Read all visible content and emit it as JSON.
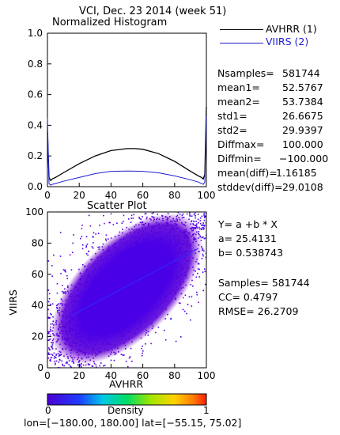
{
  "title": "VCI,  Dec. 23 2014 (week 51)",
  "colors": {
    "avhrr": "#000000",
    "viirs": "#1e1ed2",
    "fit": "#1e1eff",
    "axis": "#000000"
  },
  "histogram": {
    "title": "Normalized Histogram",
    "legend": [
      {
        "label": "AVHRR (1)",
        "color": "#000000"
      },
      {
        "label": "VIIRS (2)",
        "color": "#1e1ed2"
      }
    ],
    "stats": [
      {
        "key": "Nsamples=",
        "value": "581744"
      },
      {
        "key": "mean1=",
        "value": "52.5767"
      },
      {
        "key": "mean2=",
        "value": "53.7384"
      },
      {
        "key": "std1=",
        "value": "26.6675"
      },
      {
        "key": "std2=",
        "value": "29.9397"
      },
      {
        "key": "Diffmax=",
        "value": "100.000"
      },
      {
        "key": "Diffmin=",
        "value": "−100.000"
      },
      {
        "key": "mean(diff)=",
        "value": "1.16185"
      },
      {
        "key": "stddev(diff)=",
        "value": "29.0108"
      }
    ]
  },
  "scatter": {
    "title": "Scatter Plot",
    "xlabel": "AVHRR",
    "ylabel": "VIIRS",
    "fit_text": [
      "Y= a +b * X",
      "a= 25.4131",
      "b= 0.538743"
    ],
    "stats_text": [
      "Samples= 581744",
      "CC=  0.4797",
      "RMSE= 26.2709"
    ]
  },
  "colorbar": {
    "label": "Density",
    "min_label": "0",
    "max_label": "1"
  },
  "footer": "lon=[−180.00, 180.00] lat=[−55.15, 75.02]",
  "chart_data": [
    {
      "type": "line",
      "title": "Normalized Histogram",
      "xlim": [
        0,
        100
      ],
      "ylim": [
        0,
        1.0
      ],
      "xticks": [
        0,
        20,
        40,
        60,
        80,
        100
      ],
      "yticks": [
        0.0,
        0.2,
        0.4,
        0.6,
        0.8,
        1.0
      ],
      "x": [
        0,
        1,
        2,
        3,
        5,
        10,
        20,
        30,
        40,
        50,
        55,
        60,
        70,
        80,
        90,
        95,
        97,
        98,
        99,
        100
      ],
      "series": [
        {
          "name": "AVHRR (1)",
          "values": [
            0.35,
            0.06,
            0.04,
            0.05,
            0.06,
            0.09,
            0.15,
            0.2,
            0.235,
            0.248,
            0.248,
            0.244,
            0.215,
            0.165,
            0.1,
            0.07,
            0.06,
            0.05,
            0.08,
            0.52
          ]
        },
        {
          "name": "VIIRS (2)",
          "values": [
            0.45,
            0.02,
            0.01,
            0.015,
            0.02,
            0.035,
            0.06,
            0.085,
            0.1,
            0.102,
            0.101,
            0.1,
            0.09,
            0.07,
            0.045,
            0.03,
            0.02,
            0.015,
            0.03,
            0.46
          ]
        }
      ]
    },
    {
      "type": "scatter",
      "title": "Scatter Plot",
      "xlabel": "AVHRR",
      "ylabel": "VIIRS",
      "xlim": [
        0,
        100
      ],
      "ylim": [
        0,
        100
      ],
      "xticks": [
        0,
        20,
        40,
        60,
        80,
        100
      ],
      "yticks": [
        0,
        20,
        40,
        60,
        80,
        100
      ],
      "fit": {
        "a": 25.4131,
        "b": 0.538743
      },
      "samples": 581744,
      "cc": 0.4797,
      "rmse": 26.2709,
      "colorscale": {
        "label": "Density",
        "range": [
          0,
          1
        ]
      }
    }
  ]
}
